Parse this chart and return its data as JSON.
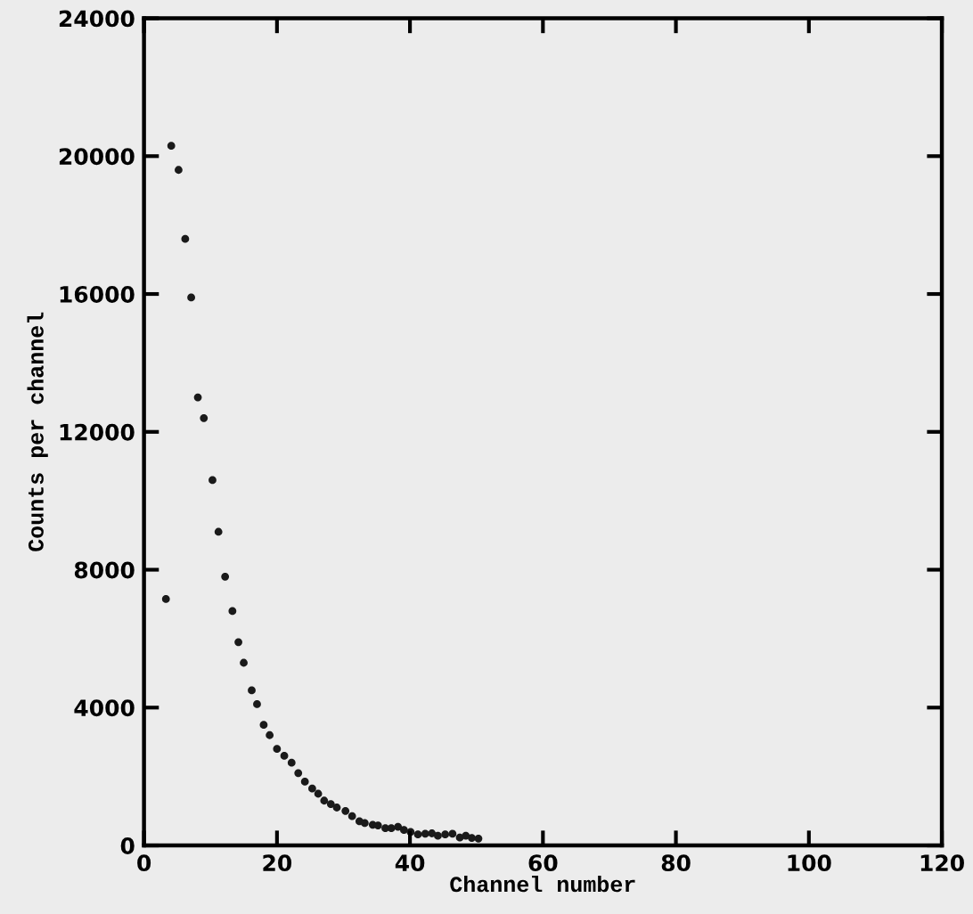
{
  "chart_data": {
    "type": "scatter",
    "xlabel": "Channel number",
    "ylabel": "Counts per channel",
    "xlim": [
      0,
      120
    ],
    "ylim": [
      0,
      24000
    ],
    "xticks": [
      0,
      20,
      40,
      60,
      80,
      100,
      120
    ],
    "yticks": [
      0,
      4000,
      8000,
      12000,
      16000,
      20000,
      24000
    ],
    "grid": false,
    "legend": false,
    "marker": "circle",
    "series": [
      {
        "color": "#1a1a1a",
        "x": [
          3.3,
          4.1,
          5.2,
          6.2,
          7.1,
          8.1,
          9.0,
          10.3,
          11.2,
          12.2,
          13.3,
          14.2,
          15.0,
          16.2,
          17.0,
          18.0,
          18.9,
          20.0,
          21.1,
          22.2,
          23.2,
          24.2,
          25.3,
          26.2,
          27.1,
          28.1,
          29.0,
          30.3,
          31.3,
          32.4,
          33.2,
          34.4,
          35.2,
          36.3,
          37.2,
          38.2,
          39.1,
          40.1,
          41.2,
          42.3,
          43.3,
          44.2,
          45.3,
          46.4,
          47.5,
          48.4,
          49.3,
          50.3
        ],
        "values": [
          7150,
          20300,
          19600,
          17600,
          15900,
          13000,
          12400,
          10600,
          9100,
          7800,
          6800,
          5900,
          5300,
          4500,
          4100,
          3500,
          3200,
          2800,
          2600,
          2400,
          2100,
          1850,
          1650,
          1500,
          1300,
          1200,
          1100,
          1000,
          850,
          700,
          650,
          600,
          580,
          500,
          500,
          540,
          450,
          390,
          320,
          340,
          350,
          280,
          320,
          340,
          230,
          280,
          220,
          200
        ]
      }
    ]
  }
}
